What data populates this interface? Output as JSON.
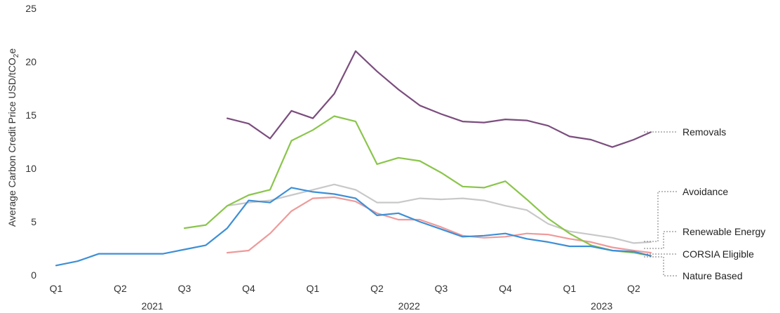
{
  "chart_data": {
    "type": "line",
    "ylabel": "Average Carbon Credit Price USD/tCO",
    "ylabel_sub": "2",
    "ylabel_tail": "e",
    "ylim": [
      0,
      25
    ],
    "y_ticks": [
      0,
      5,
      10,
      15,
      20,
      25
    ],
    "x_quarter_ticks": [
      "Q1",
      "Q2",
      "Q3",
      "Q4",
      "Q1",
      "Q2",
      "Q3",
      "Q4",
      "Q1",
      "Q2"
    ],
    "x_years": [
      "2021",
      "2022",
      "2023"
    ],
    "x_unit": "month index from Jan 2021 (Q1 2021 = 0)",
    "grid": false,
    "legend_placement": "right, labels with leader lines",
    "series": [
      {
        "name": "Removals",
        "color": "#7b4d7e",
        "points": [
          [
            8,
            14.7
          ],
          [
            9,
            14.2
          ],
          [
            10,
            12.8
          ],
          [
            11,
            15.4
          ],
          [
            12,
            14.7
          ],
          [
            13,
            17.0
          ],
          [
            14,
            21.0
          ],
          [
            15,
            19.1
          ],
          [
            16,
            17.4
          ],
          [
            17,
            15.9
          ],
          [
            18,
            15.1
          ],
          [
            19,
            14.4
          ],
          [
            20,
            14.3
          ],
          [
            21,
            14.6
          ],
          [
            22,
            14.5
          ],
          [
            23,
            14.0
          ],
          [
            24,
            13.0
          ],
          [
            25,
            12.7
          ],
          [
            26,
            12.0
          ],
          [
            27,
            12.7
          ],
          [
            27.8,
            13.4
          ]
        ]
      },
      {
        "name": "Avoidance",
        "color": "#c8c8c8",
        "points": [
          [
            8,
            6.5
          ],
          [
            9,
            6.8
          ],
          [
            10,
            7.0
          ],
          [
            11,
            7.5
          ],
          [
            12,
            8.0
          ],
          [
            13,
            8.5
          ],
          [
            14,
            8.0
          ],
          [
            15,
            6.8
          ],
          [
            16,
            6.8
          ],
          [
            17,
            7.2
          ],
          [
            18,
            7.1
          ],
          [
            19,
            7.2
          ],
          [
            20,
            7.0
          ],
          [
            21,
            6.5
          ],
          [
            22,
            6.1
          ],
          [
            23,
            4.8
          ],
          [
            24,
            4.1
          ],
          [
            25,
            3.8
          ],
          [
            26,
            3.5
          ],
          [
            27,
            3.0
          ],
          [
            27.8,
            3.1
          ]
        ]
      },
      {
        "name": "Renewable Energy",
        "color": "#ee9a9a",
        "points": [
          [
            8,
            2.1
          ],
          [
            9,
            2.3
          ],
          [
            10,
            3.9
          ],
          [
            11,
            6.0
          ],
          [
            12,
            7.2
          ],
          [
            13,
            7.3
          ],
          [
            14,
            6.9
          ],
          [
            15,
            5.8
          ],
          [
            16,
            5.2
          ],
          [
            17,
            5.2
          ],
          [
            18,
            4.5
          ],
          [
            19,
            3.7
          ],
          [
            20,
            3.5
          ],
          [
            21,
            3.6
          ],
          [
            22,
            3.9
          ],
          [
            23,
            3.8
          ],
          [
            24,
            3.4
          ],
          [
            25,
            3.1
          ],
          [
            26,
            2.6
          ],
          [
            27,
            2.3
          ],
          [
            27.8,
            2.1
          ]
        ]
      },
      {
        "name": "CORSIA Eligible",
        "color": "#8ac54b",
        "points": [
          [
            6,
            4.4
          ],
          [
            7,
            4.7
          ],
          [
            8,
            6.5
          ],
          [
            9,
            7.5
          ],
          [
            10,
            8.0
          ],
          [
            11,
            12.6
          ],
          [
            12,
            13.6
          ],
          [
            13,
            14.9
          ],
          [
            14,
            14.4
          ],
          [
            15,
            10.4
          ],
          [
            16,
            11.0
          ],
          [
            17,
            10.7
          ],
          [
            18,
            9.6
          ],
          [
            19,
            8.3
          ],
          [
            20,
            8.2
          ],
          [
            21,
            8.8
          ],
          [
            22,
            7.1
          ],
          [
            23,
            5.3
          ],
          [
            24,
            3.9
          ],
          [
            25,
            2.8
          ],
          [
            26,
            2.3
          ],
          [
            27,
            2.1
          ],
          [
            27.8,
            1.8
          ]
        ]
      },
      {
        "name": "Nature Based",
        "color": "#3d8fd6",
        "points": [
          [
            0,
            0.9
          ],
          [
            1,
            1.3
          ],
          [
            2,
            2.0
          ],
          [
            3,
            2.0
          ],
          [
            4,
            2.0
          ],
          [
            5,
            2.0
          ],
          [
            6,
            2.4
          ],
          [
            7,
            2.8
          ],
          [
            8,
            4.4
          ],
          [
            9,
            7.0
          ],
          [
            10,
            6.8
          ],
          [
            11,
            8.2
          ],
          [
            12,
            7.8
          ],
          [
            13,
            7.6
          ],
          [
            14,
            7.2
          ],
          [
            15,
            5.6
          ],
          [
            16,
            5.8
          ],
          [
            17,
            5.0
          ],
          [
            18,
            4.3
          ],
          [
            19,
            3.6
          ],
          [
            20,
            3.7
          ],
          [
            21,
            3.9
          ],
          [
            22,
            3.4
          ],
          [
            23,
            3.1
          ],
          [
            24,
            2.7
          ],
          [
            25,
            2.7
          ],
          [
            26,
            2.3
          ],
          [
            27,
            2.2
          ],
          [
            27.8,
            1.8
          ]
        ]
      }
    ]
  }
}
